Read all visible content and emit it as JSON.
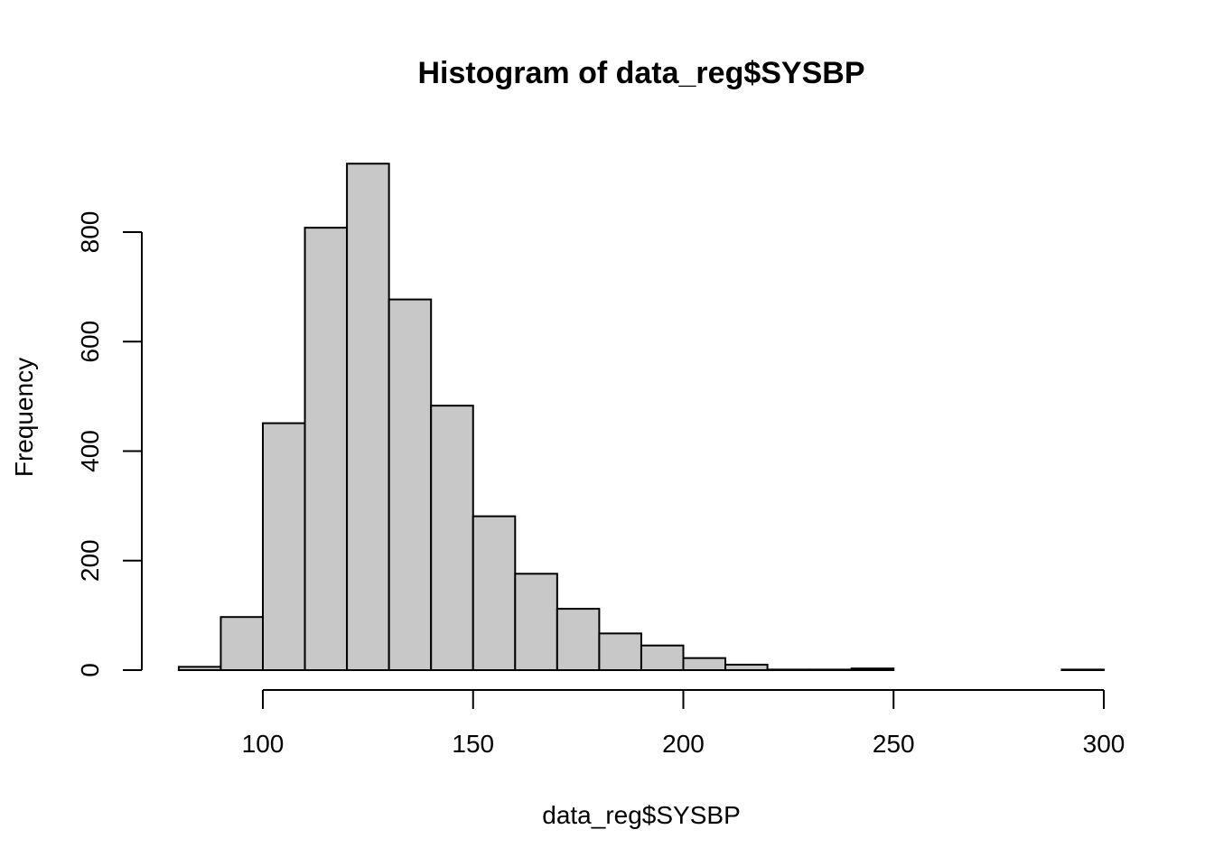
{
  "chart_data": {
    "type": "bar",
    "title": "Histogram of data_reg$SYSBP",
    "xlabel": "data_reg$SYSBP",
    "ylabel": "Frequency",
    "bins": [
      {
        "start": 80,
        "end": 90,
        "count": 6
      },
      {
        "start": 90,
        "end": 100,
        "count": 97
      },
      {
        "start": 100,
        "end": 110,
        "count": 451
      },
      {
        "start": 110,
        "end": 120,
        "count": 808
      },
      {
        "start": 120,
        "end": 130,
        "count": 925
      },
      {
        "start": 130,
        "end": 140,
        "count": 677
      },
      {
        "start": 140,
        "end": 150,
        "count": 483
      },
      {
        "start": 150,
        "end": 160,
        "count": 281
      },
      {
        "start": 160,
        "end": 170,
        "count": 176
      },
      {
        "start": 170,
        "end": 180,
        "count": 112
      },
      {
        "start": 180,
        "end": 190,
        "count": 67
      },
      {
        "start": 190,
        "end": 200,
        "count": 45
      },
      {
        "start": 200,
        "end": 210,
        "count": 22
      },
      {
        "start": 210,
        "end": 220,
        "count": 10
      },
      {
        "start": 220,
        "end": 230,
        "count": 1
      },
      {
        "start": 230,
        "end": 240,
        "count": 1
      },
      {
        "start": 240,
        "end": 250,
        "count": 3
      },
      {
        "start": 250,
        "end": 260,
        "count": 0
      },
      {
        "start": 260,
        "end": 270,
        "count": 0
      },
      {
        "start": 270,
        "end": 280,
        "count": 0
      },
      {
        "start": 280,
        "end": 290,
        "count": 0
      },
      {
        "start": 290,
        "end": 300,
        "count": 1
      }
    ],
    "xlim": [
      80,
      300
    ],
    "ylim": [
      0,
      925
    ],
    "x_ticks": [
      100,
      150,
      200,
      250,
      300
    ],
    "y_ticks": [
      0,
      200,
      400,
      600,
      800
    ],
    "grid": false,
    "bar_color": "#c8c8c8"
  }
}
